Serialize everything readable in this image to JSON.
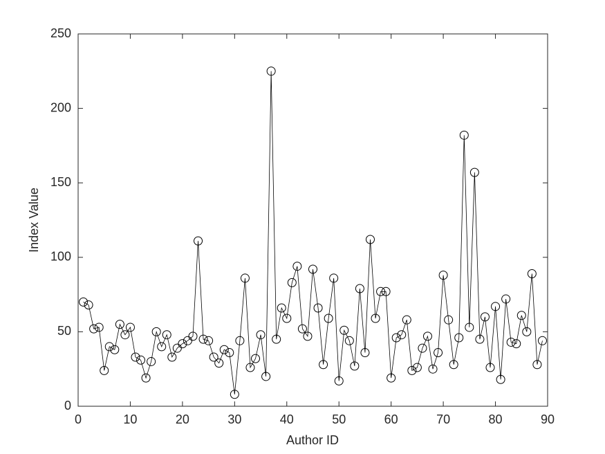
{
  "chart_data": {
    "type": "line",
    "x_label": "Author ID",
    "y_label": "Index Value",
    "x": [
      1,
      2,
      3,
      4,
      5,
      6,
      7,
      8,
      9,
      10,
      11,
      12,
      13,
      14,
      15,
      16,
      17,
      18,
      19,
      20,
      21,
      22,
      23,
      24,
      25,
      26,
      27,
      28,
      29,
      30,
      31,
      32,
      33,
      34,
      35,
      36,
      37,
      38,
      39,
      40,
      41,
      42,
      43,
      44,
      45,
      46,
      47,
      48,
      49,
      50,
      51,
      52,
      53,
      54,
      55,
      56,
      57,
      58,
      59,
      60,
      61,
      62,
      63,
      64,
      65,
      66,
      67,
      68,
      69,
      70,
      71,
      72,
      73,
      74,
      75,
      76,
      77,
      78,
      79,
      80,
      81,
      82,
      83,
      84,
      85,
      86,
      87,
      88,
      89
    ],
    "values": [
      70,
      68,
      52,
      53,
      24,
      40,
      38,
      55,
      48,
      53,
      33,
      31,
      19,
      30,
      50,
      40,
      48,
      33,
      39,
      42,
      44,
      47,
      111,
      45,
      44,
      33,
      29,
      38,
      36,
      8,
      44,
      86,
      26,
      32,
      48,
      20,
      225,
      45,
      66,
      59,
      83,
      94,
      52,
      47,
      92,
      66,
      28,
      59,
      86,
      17,
      51,
      44,
      27,
      79,
      36,
      112,
      59,
      77,
      77,
      19,
      46,
      48,
      58,
      24,
      26,
      39,
      47,
      25,
      36,
      88,
      58,
      28,
      46,
      182,
      53,
      157,
      45,
      60,
      26,
      67,
      18,
      72,
      43,
      42,
      61,
      50,
      89,
      28,
      44
    ],
    "color": "#000000",
    "marker": "circle",
    "xlim": [
      0,
      90
    ],
    "xticks": [
      0,
      10,
      20,
      30,
      40,
      50,
      60,
      70,
      80,
      90
    ],
    "ylim": [
      0,
      250
    ],
    "yticks": [
      0,
      50,
      100,
      150,
      200,
      250
    ],
    "grid": false
  }
}
